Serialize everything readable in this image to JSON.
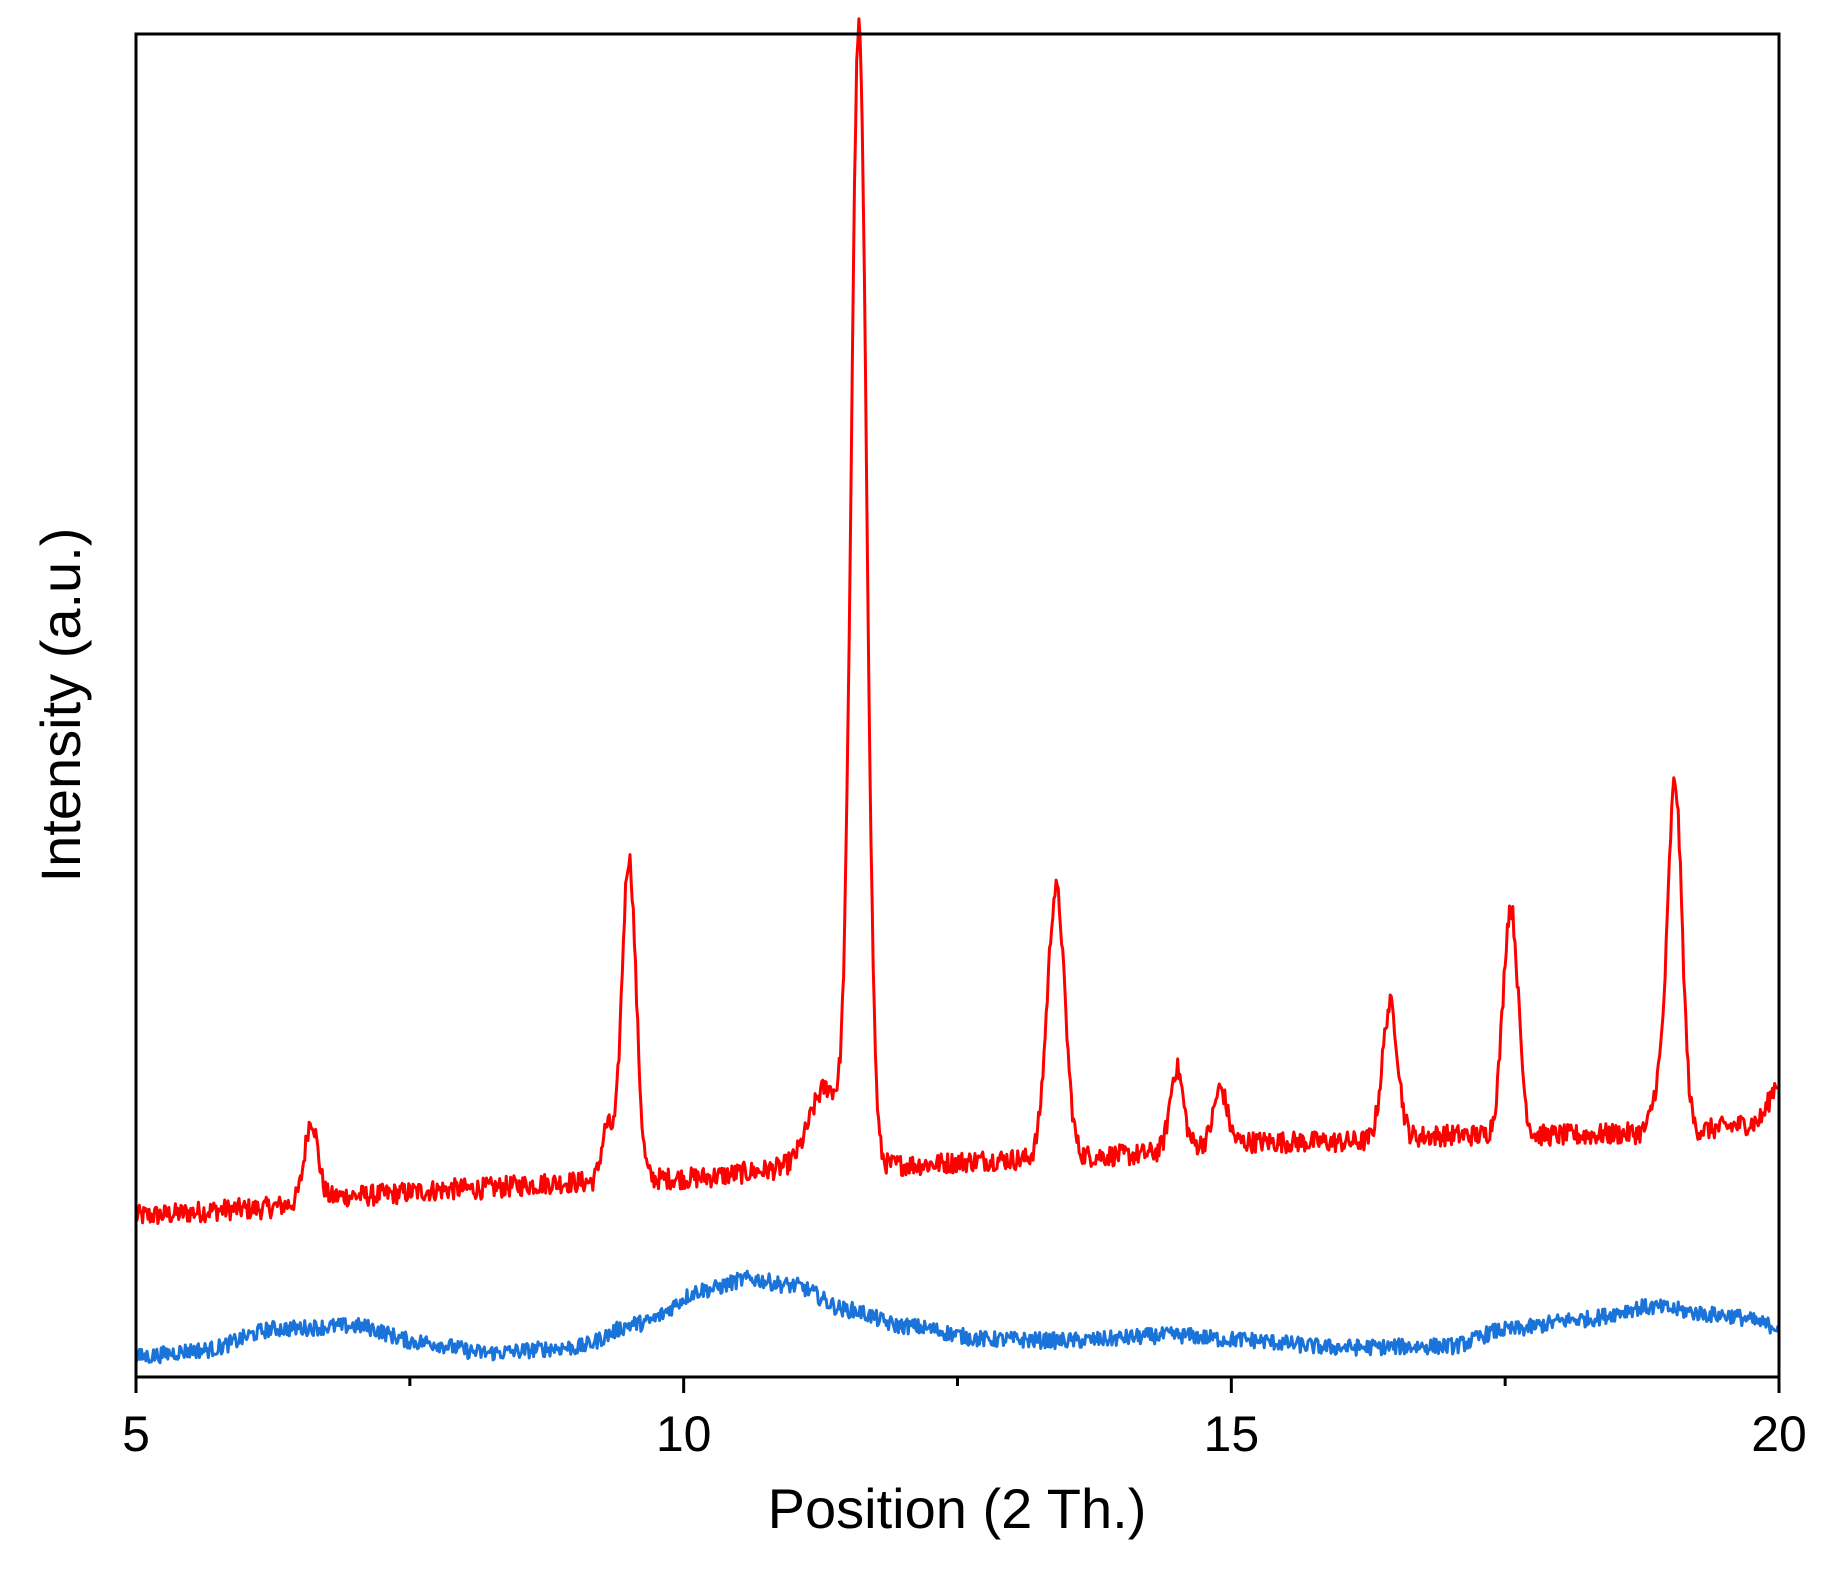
{
  "chart_data": {
    "type": "line",
    "title": "",
    "xlabel": "Position (2 Th.)",
    "ylabel": "Intensity (a.u.)",
    "xlim": [
      5,
      20
    ],
    "ylim": [
      0,
      100
    ],
    "x_major_ticks": [
      5,
      10,
      15,
      20
    ],
    "x_minor_ticks": [
      7.5,
      12.5,
      17.5
    ],
    "x_tick_labels": [
      "5",
      "10",
      "15",
      "20"
    ],
    "y_ticks_shown": false,
    "grid": false,
    "legend": "none",
    "series": [
      {
        "color": "#ff0000",
        "baseline": [
          [
            5,
            12
          ],
          [
            6,
            12.5
          ],
          [
            7,
            13.5
          ],
          [
            8,
            14
          ],
          [
            9,
            14.5
          ],
          [
            10,
            14.8
          ],
          [
            11,
            15.5
          ],
          [
            12,
            15.8
          ],
          [
            13,
            16.2
          ],
          [
            14,
            16.5
          ],
          [
            15,
            17.5
          ],
          [
            16,
            17.5
          ],
          [
            17,
            18
          ],
          [
            18,
            18
          ],
          [
            19,
            18.2
          ],
          [
            20,
            19
          ]
        ],
        "peaks": [
          {
            "x": 6.6,
            "height": 6,
            "width": 0.06
          },
          {
            "x": 9.3,
            "height": 4,
            "width": 0.05
          },
          {
            "x": 9.5,
            "height": 24,
            "width": 0.065
          },
          {
            "x": 11.3,
            "height": 6,
            "width": 0.15
          },
          {
            "x": 11.6,
            "height": 84,
            "width": 0.07
          },
          {
            "x": 13.4,
            "height": 20,
            "width": 0.08
          },
          {
            "x": 14.5,
            "height": 6,
            "width": 0.06
          },
          {
            "x": 14.9,
            "height": 4,
            "width": 0.06
          },
          {
            "x": 16.45,
            "height": 10,
            "width": 0.07
          },
          {
            "x": 17.55,
            "height": 17,
            "width": 0.07
          },
          {
            "x": 18.9,
            "height": 3,
            "width": 0.06
          },
          {
            "x": 19.05,
            "height": 26,
            "width": 0.065
          },
          {
            "x": 20.0,
            "height": 3,
            "width": 0.08
          }
        ],
        "noise": 0.8
      },
      {
        "color": "#1a73d9",
        "baseline": [
          [
            5,
            1.5
          ],
          [
            5.6,
            2
          ],
          [
            6.3,
            3.6
          ],
          [
            7.0,
            3.8
          ],
          [
            7.6,
            2.6
          ],
          [
            8.2,
            1.8
          ],
          [
            9.0,
            2.2
          ],
          [
            9.6,
            4
          ],
          [
            10.2,
            6.5
          ],
          [
            10.6,
            7.3
          ],
          [
            11.0,
            6.8
          ],
          [
            11.5,
            5
          ],
          [
            12.0,
            3.8
          ],
          [
            12.8,
            2.8
          ],
          [
            13.5,
            2.7
          ],
          [
            14.5,
            3.1
          ],
          [
            15.0,
            2.8
          ],
          [
            16.0,
            2.2
          ],
          [
            17.0,
            2.3
          ],
          [
            17.5,
            3.5
          ],
          [
            18.2,
            4.3
          ],
          [
            18.8,
            5.2
          ],
          [
            19.5,
            4.6
          ],
          [
            20.0,
            3.8
          ]
        ],
        "peaks": [],
        "noise": 0.6
      }
    ]
  }
}
